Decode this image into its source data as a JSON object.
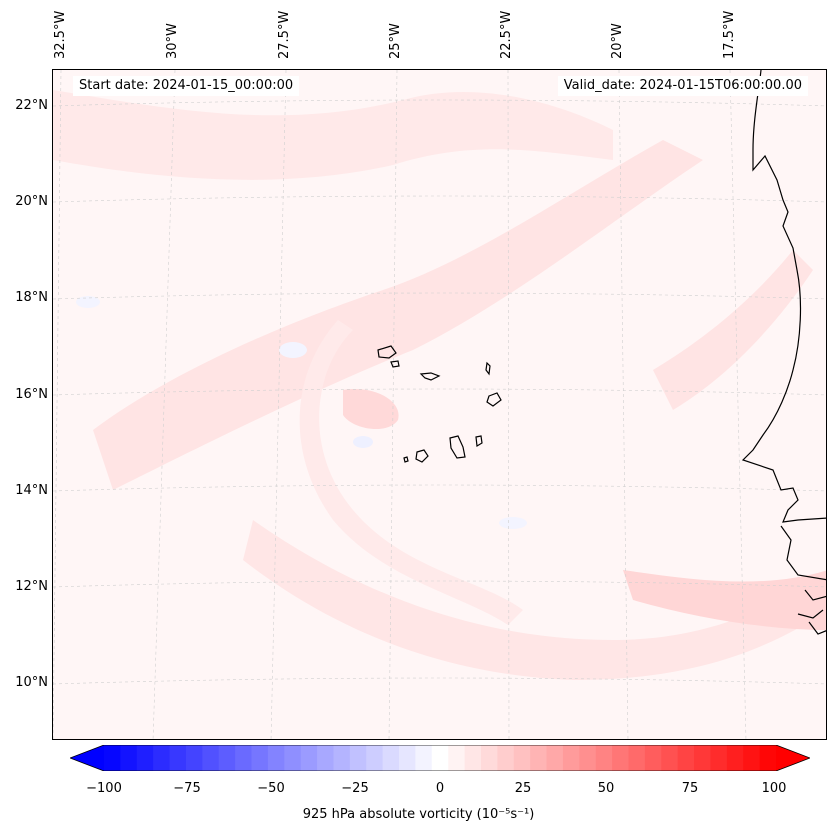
{
  "map": {
    "start_label": "Start date: 2024-01-15_00:00:00",
    "valid_label": "Valid_date: 2024-01-15T06:00:00.00",
    "lon_labels": [
      "32.5°W",
      "30°W",
      "27.5°W",
      "25°W",
      "22.5°W",
      "20°W",
      "17.5°W"
    ],
    "lat_labels": [
      "22°N",
      "20°N",
      "18°N",
      "16°N",
      "14°N",
      "12°N",
      "10°N"
    ],
    "background_color": "#fff6f6",
    "coastline_color": "#000000",
    "gridline_style": "dashed light gray"
  },
  "colorbar": {
    "ticks": [
      "−100",
      "−75",
      "−50",
      "−25",
      "0",
      "25",
      "50",
      "75",
      "100"
    ],
    "min": -100,
    "max": 100,
    "levels": 41,
    "low_color": "#0000ff",
    "mid_color": "#ffffff",
    "high_color": "#ff0000",
    "label": "925 hPa absolute vorticity (10⁻⁵s⁻¹)"
  }
}
